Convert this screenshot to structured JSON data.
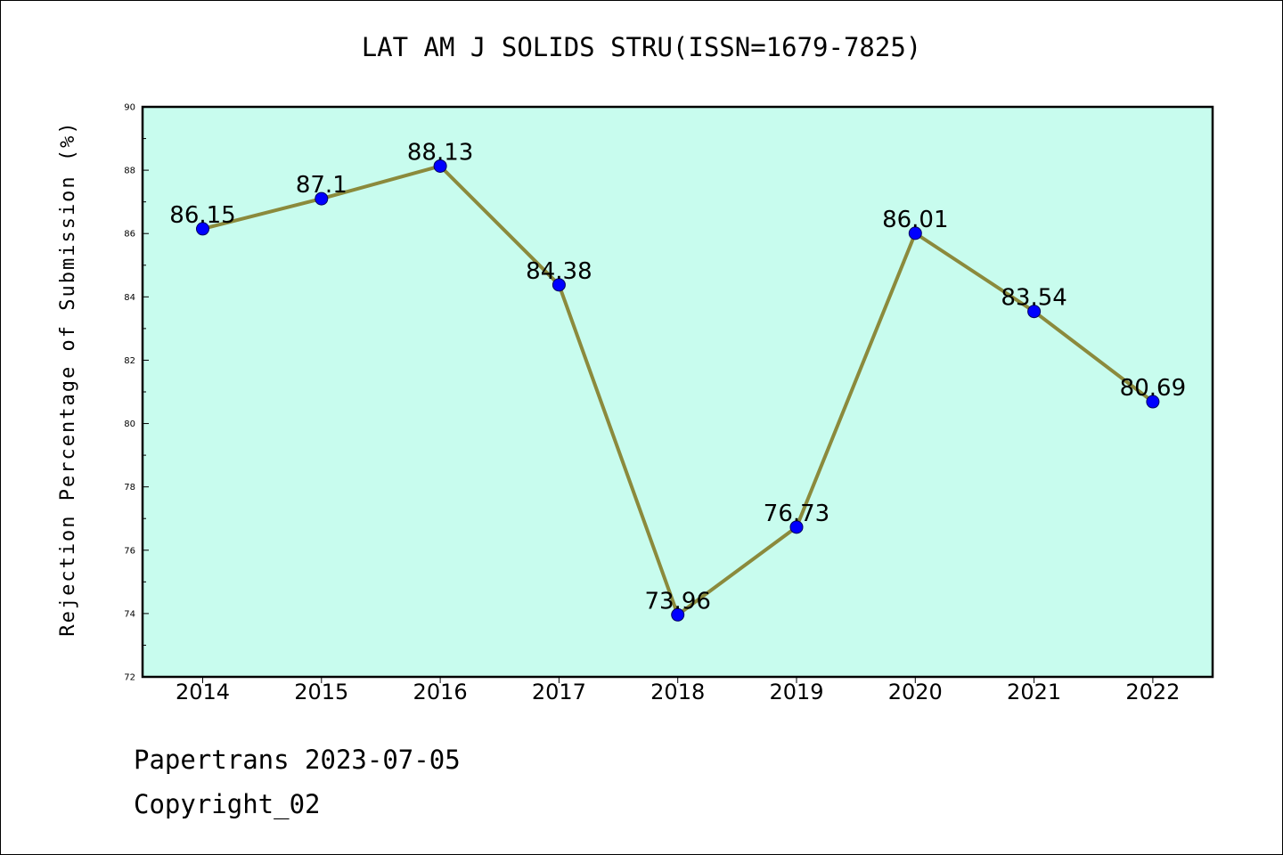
{
  "chart_data": {
    "type": "line",
    "title": "LAT AM J SOLIDS STRU(ISSN=1679-7825)",
    "xlabel": "",
    "ylabel": "Rejection Percentage of Submission (%)",
    "categories": [
      "2014",
      "2015",
      "2016",
      "2017",
      "2018",
      "2019",
      "2020",
      "2021",
      "2022"
    ],
    "series": [
      {
        "values": [
          86.15,
          87.1,
          88.13,
          84.38,
          73.96,
          76.73,
          86.01,
          83.54,
          80.69
        ],
        "value_labels": [
          "86.15",
          "87.1",
          "88.13",
          "84.38",
          "73.96",
          "76.73",
          "86.01",
          "83.54",
          "80.69"
        ]
      }
    ],
    "ylim": [
      72,
      90
    ],
    "yticks": [
      72,
      74,
      76,
      78,
      80,
      82,
      84,
      86,
      88,
      90
    ],
    "grid": false,
    "legend": "none",
    "colors": {
      "plot_background": "#c8fcee",
      "line": "#8b8a3c",
      "marker": "#0000ff"
    }
  },
  "footer": {
    "line1": "Papertrans 2023-07-05",
    "line2": "Copyright_02"
  }
}
